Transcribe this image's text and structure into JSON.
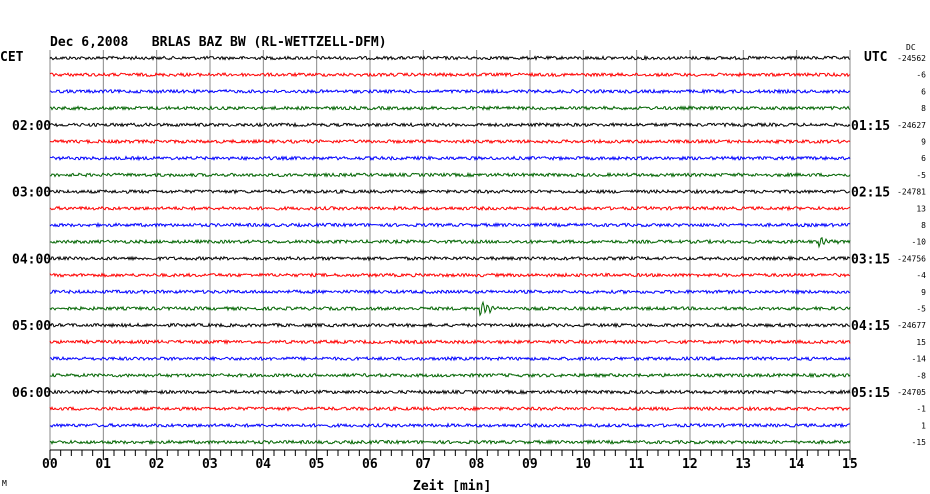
{
  "chart_data": {
    "type": "line",
    "title": "Dec 6,2008   BRLAS BAZ BW (RL-WETTZELL-DFM)",
    "xlabel": "Zeit [min]",
    "xlim": [
      0,
      15
    ],
    "x_ticks": [
      "00",
      "01",
      "02",
      "03",
      "04",
      "05",
      "06",
      "07",
      "08",
      "09",
      "10",
      "11",
      "12",
      "13",
      "14",
      "15"
    ],
    "left_axis_label": "CET",
    "right_axis_label": "UTC",
    "dc_label": "DC",
    "left_hour_labels": [
      {
        "row": 4,
        "text": "02:00"
      },
      {
        "row": 8,
        "text": "03:00"
      },
      {
        "row": 12,
        "text": "04:00"
      },
      {
        "row": 16,
        "text": "05:00"
      },
      {
        "row": 20,
        "text": "06:00"
      }
    ],
    "right_hour_labels": [
      {
        "row": 4,
        "text": "01:15"
      },
      {
        "row": 8,
        "text": "02:15"
      },
      {
        "row": 12,
        "text": "03:15"
      },
      {
        "row": 16,
        "text": "04:15"
      },
      {
        "row": 20,
        "text": "05:15"
      }
    ],
    "series_colors": [
      "#000000",
      "#ff0000",
      "#0000ff",
      "#006400"
    ],
    "dc_offsets": [
      "-24562",
      "-6",
      "6",
      "8",
      "-24627",
      "9",
      "6",
      "-5",
      "-24781",
      "13",
      "8",
      "-10",
      "-24756",
      "-4",
      "9",
      "-5",
      "-24677",
      "15",
      "-14",
      "-8",
      "-24705",
      "-1",
      "1",
      "-15"
    ],
    "events": [
      {
        "row": 15,
        "minute": 8.05,
        "amplitude": 8
      },
      {
        "row": 11,
        "minute": 14.4,
        "amplitude": 4
      }
    ],
    "footer_mark": "M"
  }
}
